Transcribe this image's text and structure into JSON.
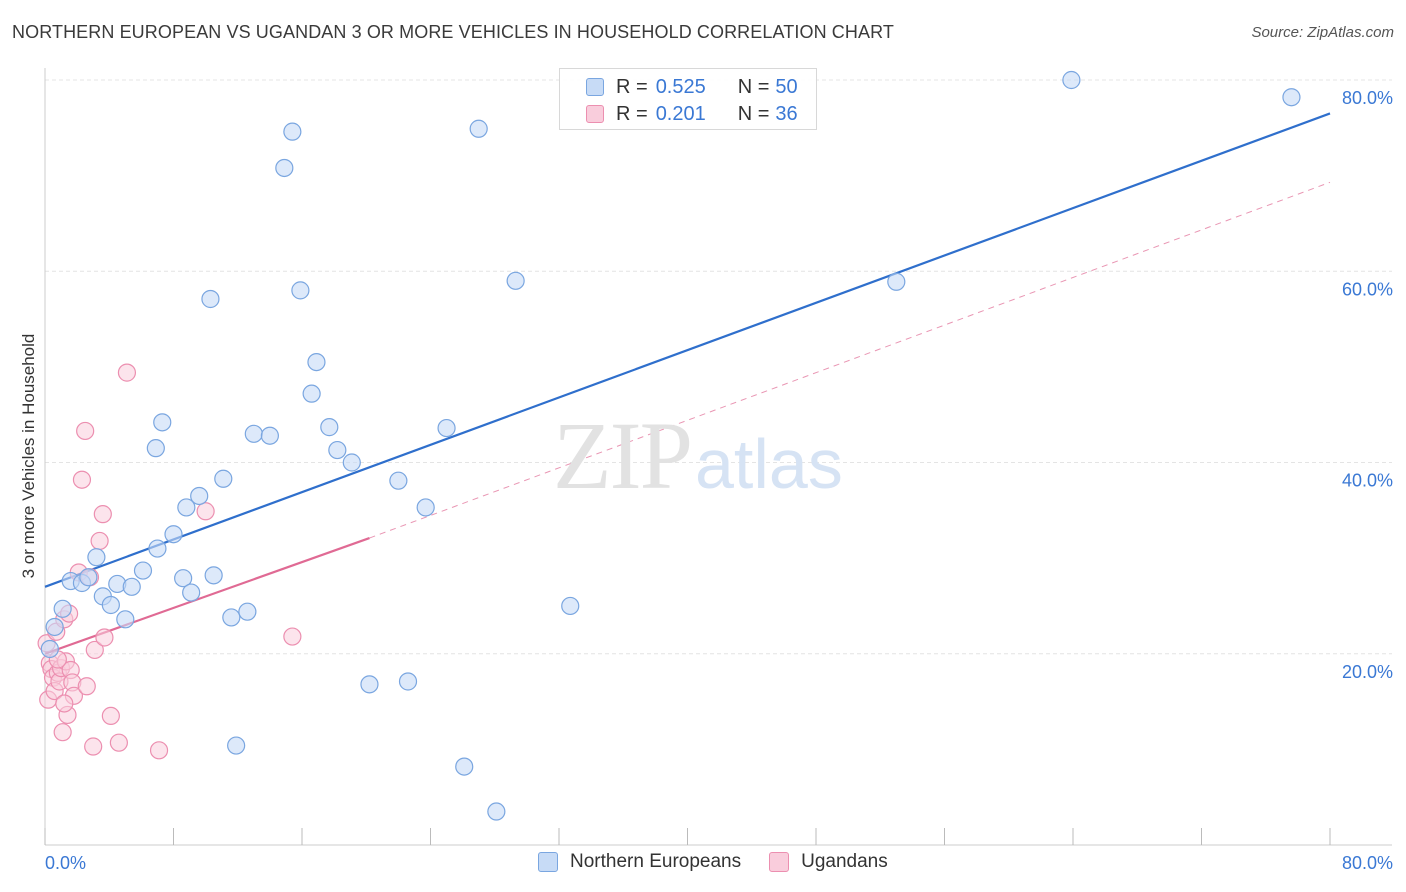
{
  "header": {
    "title": "NORTHERN EUROPEAN VS UGANDAN 3 OR MORE VEHICLES IN HOUSEHOLD CORRELATION CHART",
    "source": "Source: ZipAtlas.com"
  },
  "legend": {
    "rows": [
      {
        "r_label": "R =",
        "r_value": "0.525",
        "n_label": "N =",
        "n_value": "50"
      },
      {
        "r_label": "R =",
        "r_value": "0.201",
        "n_label": "N =",
        "n_value": "36"
      }
    ]
  },
  "watermark": {
    "zip": "ZIP",
    "atlas": "atlas"
  },
  "colors": {
    "blue_fill": "#c7dbf6",
    "blue_stroke": "#7aa6e0",
    "blue_line": "#2f6fcc",
    "pink_fill": "#f9cddc",
    "pink_stroke": "#ec8fb0",
    "pink_line": "#e06a94",
    "axis_text": "#3a78d4",
    "grid": "#e4e4e4"
  },
  "chart_data": {
    "type": "scatter",
    "title": "NORTHERN EUROPEAN VS UGANDAN 3 OR MORE VEHICLES IN HOUSEHOLD CORRELATION CHART",
    "xlabel": "",
    "ylabel": "3 or more Vehicles in Household",
    "xlim": [
      0,
      80
    ],
    "ylim": [
      0,
      82
    ],
    "x_tick_labels": [
      "0.0%",
      "80.0%"
    ],
    "y_ticks": [
      20,
      40,
      60,
      80
    ],
    "y_tick_labels": [
      "20.0%",
      "40.0%",
      "60.0%",
      "80.0%"
    ],
    "grid": true,
    "legend_position": "top-center",
    "series": [
      {
        "name": "Northern Europeans",
        "color": "#7aa6e0",
        "trendline": {
          "x": [
            0,
            80
          ],
          "y": [
            27.0,
            76.5
          ],
          "style": "solid"
        },
        "points": [
          [
            0.3,
            20.5
          ],
          [
            0.6,
            22.8
          ],
          [
            1.1,
            24.7
          ],
          [
            1.6,
            27.6
          ],
          [
            2.3,
            27.4
          ],
          [
            2.7,
            28.0
          ],
          [
            3.2,
            30.1
          ],
          [
            3.6,
            26.0
          ],
          [
            4.1,
            25.1
          ],
          [
            4.5,
            27.3
          ],
          [
            5.0,
            23.6
          ],
          [
            5.4,
            27.0
          ],
          [
            6.1,
            28.7
          ],
          [
            6.9,
            41.5
          ],
          [
            7.0,
            31.0
          ],
          [
            7.3,
            44.2
          ],
          [
            8.0,
            32.5
          ],
          [
            8.6,
            27.9
          ],
          [
            8.8,
            35.3
          ],
          [
            9.1,
            26.4
          ],
          [
            9.6,
            36.5
          ],
          [
            10.3,
            57.1
          ],
          [
            10.5,
            28.2
          ],
          [
            11.1,
            38.3
          ],
          [
            11.6,
            23.8
          ],
          [
            11.9,
            10.4
          ],
          [
            12.6,
            24.4
          ],
          [
            13.0,
            43.0
          ],
          [
            14.0,
            42.8
          ],
          [
            14.9,
            70.8
          ],
          [
            15.4,
            74.6
          ],
          [
            15.9,
            58.0
          ],
          [
            16.6,
            47.2
          ],
          [
            16.9,
            50.5
          ],
          [
            17.7,
            43.7
          ],
          [
            18.2,
            41.3
          ],
          [
            19.1,
            40.0
          ],
          [
            20.2,
            16.8
          ],
          [
            22.0,
            38.1
          ],
          [
            22.6,
            17.1
          ],
          [
            23.7,
            35.3
          ],
          [
            25.0,
            43.6
          ],
          [
            26.1,
            8.2
          ],
          [
            27.0,
            74.9
          ],
          [
            28.1,
            3.5
          ],
          [
            29.3,
            59.0
          ],
          [
            32.7,
            25.0
          ],
          [
            53.0,
            58.9
          ],
          [
            63.9,
            80.0
          ],
          [
            77.6,
            78.2
          ]
        ]
      },
      {
        "name": "Ugandans",
        "color": "#ec8fb0",
        "trendline": {
          "x": [
            0,
            20.2
          ],
          "y": [
            20.0,
            32.1
          ],
          "style": "solid",
          "extended_x": [
            20.2,
            80
          ],
          "extended_y": [
            32.1,
            69.3
          ],
          "extended_style": "dashed"
        },
        "points": [
          [
            0.1,
            21.1
          ],
          [
            0.2,
            15.2
          ],
          [
            0.3,
            19.0
          ],
          [
            0.4,
            18.4
          ],
          [
            0.5,
            17.5
          ],
          [
            0.6,
            16.1
          ],
          [
            0.7,
            22.3
          ],
          [
            0.8,
            18.0
          ],
          [
            0.9,
            17.1
          ],
          [
            1.0,
            18.5
          ],
          [
            1.1,
            11.8
          ],
          [
            1.2,
            23.6
          ],
          [
            1.3,
            19.2
          ],
          [
            1.4,
            13.6
          ],
          [
            1.5,
            24.2
          ],
          [
            1.6,
            18.3
          ],
          [
            1.7,
            17.0
          ],
          [
            1.8,
            15.6
          ],
          [
            2.1,
            28.5
          ],
          [
            2.3,
            38.2
          ],
          [
            2.5,
            43.3
          ],
          [
            2.6,
            16.6
          ],
          [
            2.8,
            28.0
          ],
          [
            3.0,
            10.3
          ],
          [
            3.1,
            20.4
          ],
          [
            3.4,
            31.8
          ],
          [
            3.6,
            34.6
          ],
          [
            3.7,
            21.7
          ],
          [
            4.1,
            13.5
          ],
          [
            4.6,
            10.7
          ],
          [
            5.1,
            49.4
          ],
          [
            7.1,
            9.9
          ],
          [
            10.0,
            34.9
          ],
          [
            15.4,
            21.8
          ],
          [
            0.8,
            19.4
          ],
          [
            1.2,
            14.8
          ]
        ]
      }
    ]
  }
}
